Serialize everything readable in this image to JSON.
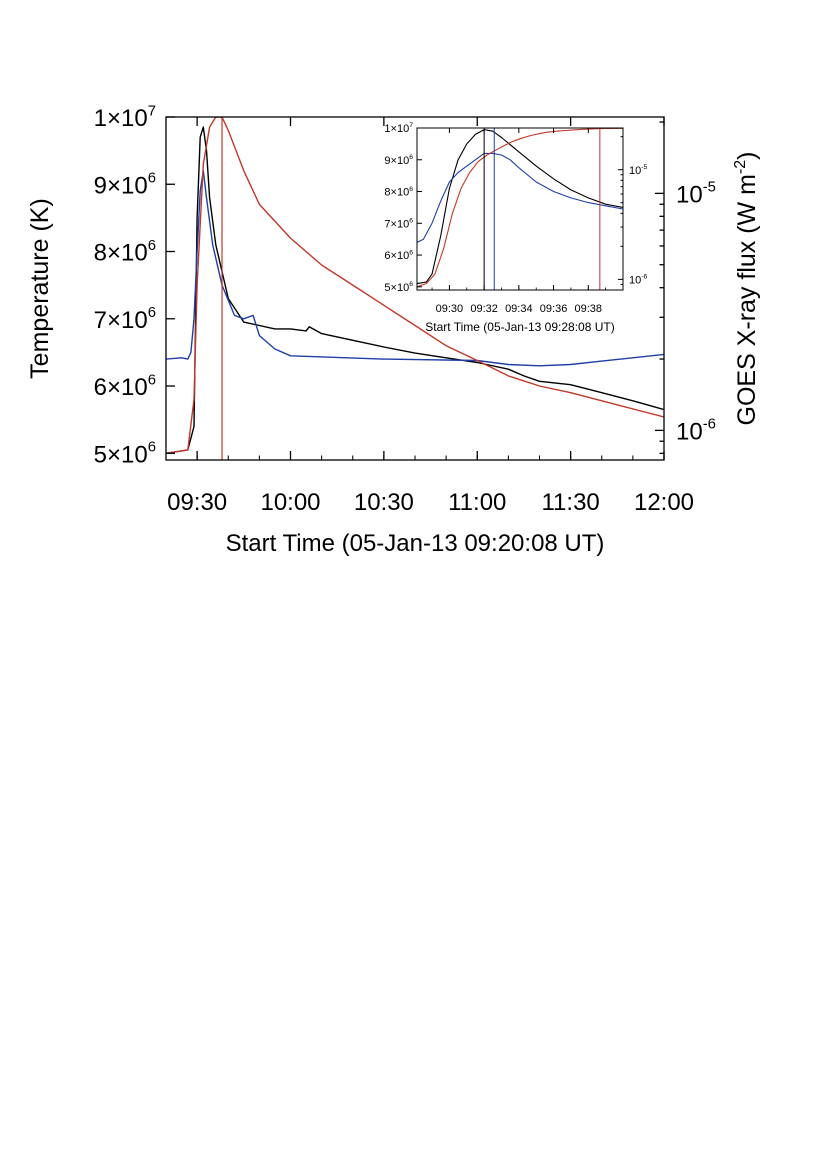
{
  "chart_data": [
    {
      "type": "line",
      "xlabel": "Start Time (05-Jan-13 09:20:08 UT)",
      "ylabel": "Temperature (K)",
      "y2label_main": "GOES X-ray flux (W m",
      "y2label_sup": "-2",
      "y2label_close": ")",
      "xlim": [
        "09:20",
        "12:00"
      ],
      "ylim": [
        4900000,
        10000000
      ],
      "y2lim": [
        7.5e-07,
        2.1e-05
      ],
      "y2_scale": "log",
      "x_ticks": [
        "09:30",
        "10:00",
        "10:30",
        "11:00",
        "11:30",
        "12:00"
      ],
      "y_ticks": [
        {
          "base": "5×10",
          "exp": "6",
          "value": 5000000
        },
        {
          "base": "6×10",
          "exp": "6",
          "value": 6000000
        },
        {
          "base": "7×10",
          "exp": "6",
          "value": 7000000
        },
        {
          "base": "8×10",
          "exp": "6",
          "value": 8000000
        },
        {
          "base": "9×10",
          "exp": "6",
          "value": 9000000
        },
        {
          "base": "1×10",
          "exp": "7",
          "value": 10000000
        }
      ],
      "y2_ticks": [
        {
          "base": "10",
          "exp": "-6",
          "value": 1e-06
        },
        {
          "base": "10",
          "exp": "-5",
          "value": 1e-05
        }
      ],
      "vlines": [
        {
          "x": "09:38",
          "color": "#c0392b"
        }
      ],
      "series": [
        {
          "color": "#000000",
          "axis": "left",
          "x": [
            "09:20",
            "09:27",
            "09:29",
            "09:30",
            "09:31",
            "09:32",
            "09:33",
            "09:34",
            "09:36",
            "09:40",
            "09:45",
            "09:55",
            "10:00",
            "10:05",
            "10:06",
            "10:10",
            "10:20",
            "10:30",
            "10:40",
            "10:50",
            "11:00",
            "11:10",
            "11:15",
            "11:20",
            "11:30",
            "11:40",
            "11:50",
            "12:00"
          ],
          "y": [
            5000000,
            5050000,
            5400000,
            8500000,
            9700000,
            9850000,
            9500000,
            8800000,
            8100000,
            7300000,
            6950000,
            6850000,
            6850000,
            6820000,
            6880000,
            6780000,
            6680000,
            6580000,
            6490000,
            6420000,
            6350000,
            6250000,
            6150000,
            6070000,
            6020000,
            5900000,
            5780000,
            5650000
          ]
        },
        {
          "color": "#1f3fa8",
          "axis": "left",
          "x": [
            "09:20",
            "09:25",
            "09:27",
            "09:28",
            "09:29",
            "09:30",
            "09:31",
            "09:32",
            "09:33",
            "09:35",
            "09:38",
            "09:42",
            "09:45",
            "09:48",
            "09:50",
            "09:55",
            "10:00",
            "10:30",
            "11:00",
            "11:10",
            "11:20",
            "11:30",
            "11:40",
            "11:50",
            "12:00"
          ],
          "y": [
            6400000,
            6420000,
            6400000,
            6500000,
            7000000,
            8000000,
            8900000,
            9200000,
            8800000,
            8100000,
            7500000,
            7050000,
            7000000,
            7050000,
            6750000,
            6550000,
            6450000,
            6400000,
            6380000,
            6320000,
            6300000,
            6320000,
            6370000,
            6420000,
            6470000
          ]
        },
        {
          "color": "#c0392b",
          "axis": "left",
          "x": [
            "09:20",
            "09:27",
            "09:29",
            "09:30",
            "09:32",
            "09:34",
            "09:36",
            "09:38",
            "09:40",
            "09:45",
            "09:50",
            "10:00",
            "10:10",
            "10:20",
            "10:30",
            "10:40",
            "10:50",
            "11:00",
            "11:10",
            "11:20",
            "11:30",
            "11:40",
            "11:50",
            "12:00"
          ],
          "y": [
            5000000,
            5050000,
            5800000,
            7500000,
            9300000,
            9850000,
            10000000,
            10000000,
            9800000,
            9200000,
            8700000,
            8200000,
            7800000,
            7500000,
            7200000,
            6900000,
            6600000,
            6380000,
            6150000,
            6000000,
            5900000,
            5780000,
            5660000,
            5540000
          ]
        }
      ]
    },
    {
      "type": "line",
      "xlabel": "Start Time (05-Jan-13 09:28:08 UT)",
      "xlim": [
        "09:28:08",
        "09:40:00"
      ],
      "ylim": [
        4900000,
        10000000
      ],
      "y2_scale": "log",
      "x_ticks": [
        "09:30",
        "09:32",
        "09:34",
        "09:36",
        "09:38"
      ],
      "y_ticks": [
        {
          "base": "5×10",
          "exp": "6",
          "value": 5000000
        },
        {
          "base": "6×10",
          "exp": "6",
          "value": 6000000
        },
        {
          "base": "7×10",
          "exp": "6",
          "value": 7000000
        },
        {
          "base": "8×10",
          "exp": "6",
          "value": 8000000
        },
        {
          "base": "9×10",
          "exp": "6",
          "value": 9000000
        },
        {
          "base": "1×10",
          "exp": "7",
          "value": 10000000
        }
      ],
      "y2_ticks": [
        {
          "base": "10",
          "exp": "-6",
          "value": 1e-06
        },
        {
          "base": "10",
          "exp": "-5",
          "value": 1e-05
        }
      ],
      "vlines": [
        {
          "x": "09:32:00",
          "color": "#000000"
        },
        {
          "x": "09:32:35",
          "color": "#1f3fa8"
        },
        {
          "x": "09:38:40",
          "color": "#c0392b"
        }
      ],
      "series": [
        {
          "color": "#000000",
          "x": [
            "09:28:08",
            "09:28:40",
            "09:29:00",
            "09:29:30",
            "09:30:00",
            "09:30:30",
            "09:31:00",
            "09:31:30",
            "09:32:00",
            "09:32:30",
            "09:33:00",
            "09:34:00",
            "09:35:00",
            "09:36:00",
            "09:37:00",
            "09:38:00",
            "09:39:00",
            "09:40:00"
          ],
          "y": [
            5100000,
            5150000,
            5400000,
            6600000,
            8100000,
            9000000,
            9500000,
            9800000,
            9950000,
            9900000,
            9700000,
            9250000,
            8800000,
            8400000,
            8050000,
            7800000,
            7600000,
            7500000
          ]
        },
        {
          "color": "#1f3fa8",
          "x": [
            "09:28:08",
            "09:28:30",
            "09:29:00",
            "09:29:30",
            "09:30:00",
            "09:30:30",
            "09:31:00",
            "09:31:30",
            "09:32:00",
            "09:32:30",
            "09:33:00",
            "09:33:30",
            "09:34:00",
            "09:35:00",
            "09:36:00",
            "09:37:00",
            "09:38:00",
            "09:39:00",
            "09:40:00"
          ],
          "y": [
            6400000,
            6500000,
            7000000,
            7700000,
            8300000,
            8600000,
            8800000,
            9000000,
            9200000,
            9200000,
            9150000,
            9000000,
            8750000,
            8300000,
            8000000,
            7800000,
            7650000,
            7550000,
            7450000
          ]
        },
        {
          "color": "#c0392b",
          "x": [
            "09:28:08",
            "09:28:40",
            "09:29:10",
            "09:29:40",
            "09:30:10",
            "09:30:40",
            "09:31:10",
            "09:31:40",
            "09:32:10",
            "09:32:40",
            "09:33:10",
            "09:33:40",
            "09:34:10",
            "09:34:40",
            "09:35:10",
            "09:35:40",
            "09:36:10",
            "09:36:40",
            "09:37:10",
            "09:37:40",
            "09:38:10",
            "09:38:40",
            "09:39:10",
            "09:40:00"
          ],
          "y": [
            5000000,
            5100000,
            5400000,
            6200000,
            7300000,
            8100000,
            8600000,
            8950000,
            9150000,
            9300000,
            9450000,
            9580000,
            9680000,
            9760000,
            9820000,
            9870000,
            9900000,
            9920000,
            9940000,
            9960000,
            9970000,
            9980000,
            9985000,
            9990000
          ]
        }
      ]
    }
  ]
}
